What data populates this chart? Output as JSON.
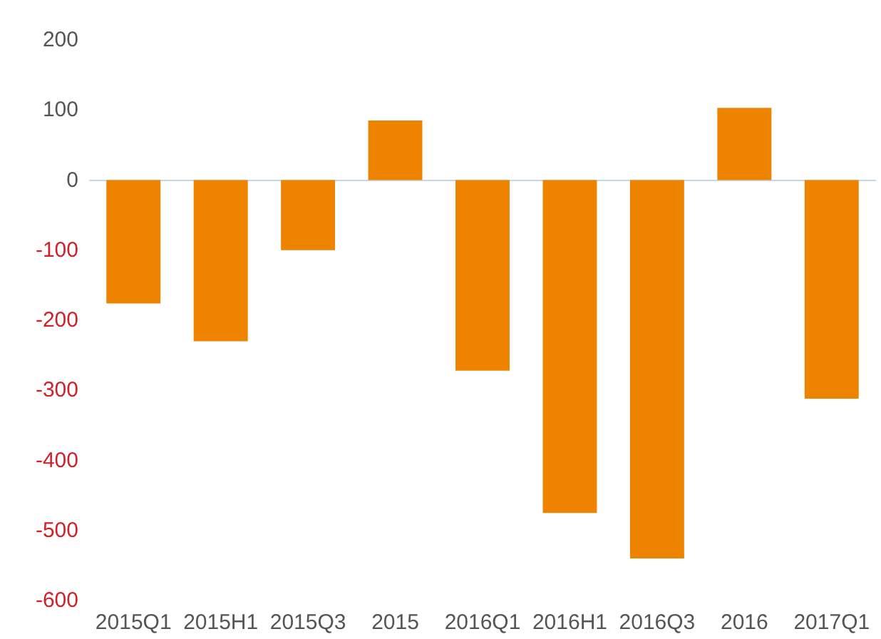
{
  "chart_data": {
    "type": "bar",
    "categories": [
      "2015Q1",
      "2015H1",
      "2015Q3",
      "2015",
      "2016Q1",
      "2016H1",
      "2016Q3",
      "2016",
      "2017Q1"
    ],
    "values": [
      -176,
      -230,
      -100,
      85,
      -272,
      -475,
      -540,
      103,
      -312
    ],
    "color": "#ee8300",
    "ylim": [
      -600,
      200
    ],
    "yticks": [
      -600,
      -500,
      -400,
      -300,
      -200,
      -100,
      0,
      100,
      200
    ]
  }
}
